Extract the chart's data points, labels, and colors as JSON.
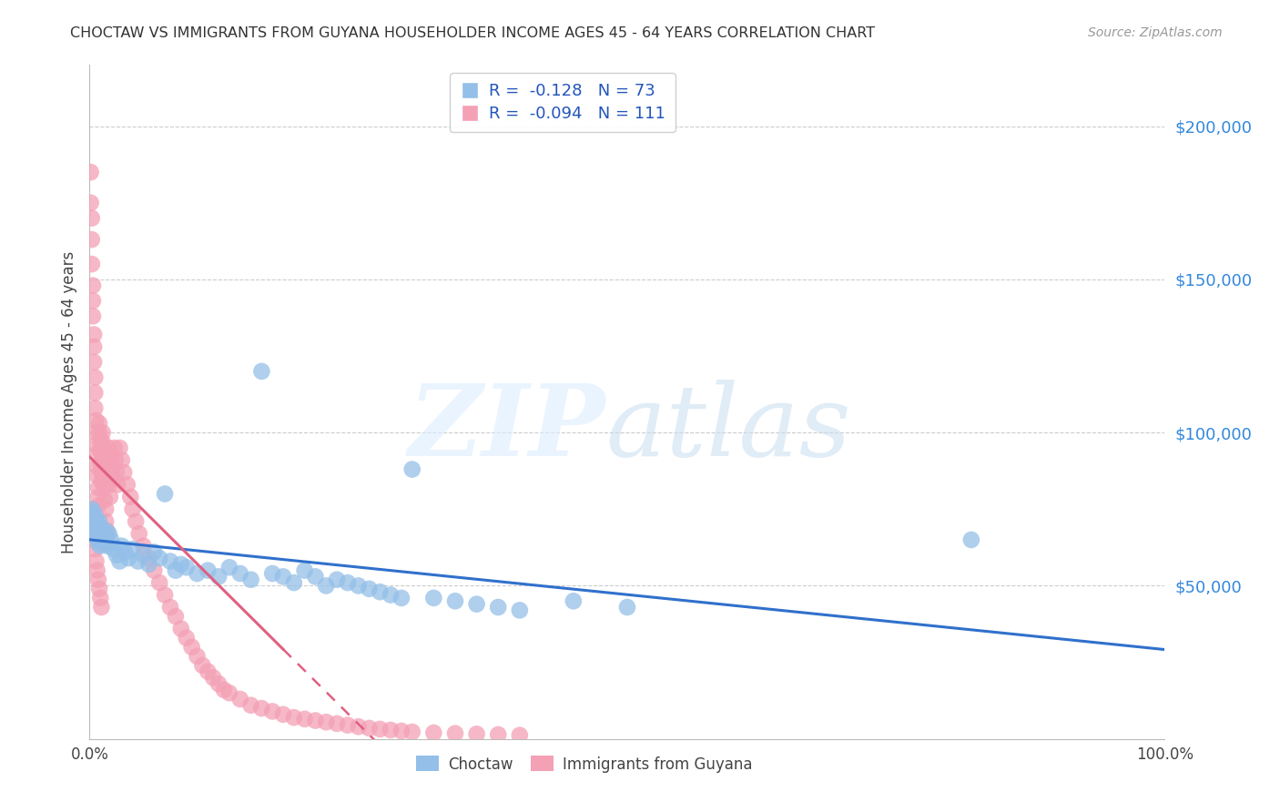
{
  "title": "CHOCTAW VS IMMIGRANTS FROM GUYANA HOUSEHOLDER INCOME AGES 45 - 64 YEARS CORRELATION CHART",
  "source": "Source: ZipAtlas.com",
  "ylabel": "Householder Income Ages 45 - 64 years",
  "xlim": [
    0.0,
    1.0
  ],
  "ylim": [
    0,
    220000
  ],
  "yticks": [
    50000,
    100000,
    150000,
    200000
  ],
  "ytick_labels": [
    "$50,000",
    "$100,000",
    "$150,000",
    "$200,000"
  ],
  "legend_r_choctaw": "-0.128",
  "legend_n_choctaw": "73",
  "legend_r_guyana": "-0.094",
  "legend_n_guyana": "111",
  "choctaw_color": "#94bfe8",
  "guyana_color": "#f4a0b5",
  "choctaw_line_color": "#3070cc",
  "guyana_line_color": "#e06080",
  "background_color": "#ffffff",
  "choctaw_x": [
    0.001,
    0.002,
    0.003,
    0.003,
    0.004,
    0.004,
    0.005,
    0.005,
    0.006,
    0.006,
    0.007,
    0.007,
    0.008,
    0.008,
    0.009,
    0.009,
    0.01,
    0.01,
    0.011,
    0.012,
    0.013,
    0.014,
    0.015,
    0.016,
    0.017,
    0.018,
    0.02,
    0.022,
    0.025,
    0.028,
    0.03,
    0.033,
    0.036,
    0.04,
    0.045,
    0.05,
    0.055,
    0.06,
    0.065,
    0.07,
    0.075,
    0.08,
    0.085,
    0.09,
    0.1,
    0.11,
    0.12,
    0.13,
    0.14,
    0.15,
    0.16,
    0.17,
    0.18,
    0.19,
    0.2,
    0.21,
    0.22,
    0.23,
    0.24,
    0.25,
    0.26,
    0.27,
    0.28,
    0.29,
    0.3,
    0.32,
    0.34,
    0.36,
    0.38,
    0.4,
    0.45,
    0.5,
    0.82
  ],
  "choctaw_y": [
    72000,
    75000,
    68000,
    73000,
    70000,
    74000,
    71000,
    69000,
    67000,
    72000,
    66000,
    68000,
    64000,
    70000,
    65000,
    71000,
    63000,
    69000,
    67000,
    65000,
    66000,
    64000,
    68000,
    66000,
    63000,
    67000,
    65000,
    62000,
    60000,
    58000,
    63000,
    61000,
    59000,
    62000,
    58000,
    60000,
    57000,
    61000,
    59000,
    80000,
    58000,
    55000,
    57000,
    56000,
    54000,
    55000,
    53000,
    56000,
    54000,
    52000,
    120000,
    54000,
    53000,
    51000,
    55000,
    53000,
    50000,
    52000,
    51000,
    50000,
    49000,
    48000,
    47000,
    46000,
    88000,
    46000,
    45000,
    44000,
    43000,
    42000,
    45000,
    43000,
    65000
  ],
  "guyana_x": [
    0.001,
    0.001,
    0.002,
    0.002,
    0.002,
    0.003,
    0.003,
    0.003,
    0.004,
    0.004,
    0.004,
    0.005,
    0.005,
    0.005,
    0.006,
    0.006,
    0.006,
    0.007,
    0.007,
    0.007,
    0.008,
    0.008,
    0.008,
    0.009,
    0.009,
    0.01,
    0.01,
    0.01,
    0.011,
    0.011,
    0.012,
    0.012,
    0.012,
    0.013,
    0.013,
    0.014,
    0.014,
    0.015,
    0.015,
    0.016,
    0.016,
    0.017,
    0.017,
    0.018,
    0.018,
    0.019,
    0.02,
    0.021,
    0.022,
    0.023,
    0.024,
    0.025,
    0.026,
    0.028,
    0.03,
    0.032,
    0.035,
    0.038,
    0.04,
    0.043,
    0.046,
    0.05,
    0.055,
    0.06,
    0.065,
    0.07,
    0.075,
    0.08,
    0.085,
    0.09,
    0.095,
    0.1,
    0.105,
    0.11,
    0.115,
    0.12,
    0.125,
    0.13,
    0.14,
    0.15,
    0.16,
    0.17,
    0.18,
    0.19,
    0.2,
    0.21,
    0.22,
    0.23,
    0.24,
    0.25,
    0.26,
    0.27,
    0.28,
    0.29,
    0.3,
    0.32,
    0.34,
    0.36,
    0.38,
    0.4,
    0.001,
    0.002,
    0.003,
    0.004,
    0.005,
    0.006,
    0.007,
    0.008,
    0.009,
    0.01,
    0.011
  ],
  "guyana_y": [
    185000,
    175000,
    170000,
    163000,
    155000,
    148000,
    143000,
    138000,
    132000,
    128000,
    123000,
    118000,
    113000,
    108000,
    104000,
    100000,
    96000,
    93000,
    89000,
    86000,
    82000,
    79000,
    76000,
    103000,
    100000,
    97000,
    94000,
    90000,
    87000,
    84000,
    100000,
    97000,
    93000,
    90000,
    86000,
    82000,
    78000,
    75000,
    71000,
    68000,
    64000,
    95000,
    91000,
    87000,
    83000,
    79000,
    93000,
    89000,
    85000,
    95000,
    91000,
    87000,
    83000,
    95000,
    91000,
    87000,
    83000,
    79000,
    75000,
    71000,
    67000,
    63000,
    59000,
    55000,
    51000,
    47000,
    43000,
    40000,
    36000,
    33000,
    30000,
    27000,
    24000,
    22000,
    20000,
    18000,
    16000,
    15000,
    13000,
    11000,
    10000,
    9000,
    8000,
    7000,
    6500,
    6000,
    5500,
    5000,
    4500,
    4000,
    3500,
    3200,
    2900,
    2600,
    2300,
    2000,
    1800,
    1600,
    1400,
    1200,
    75000,
    72000,
    68000,
    65000,
    62000,
    58000,
    55000,
    52000,
    49000,
    46000,
    43000
  ]
}
